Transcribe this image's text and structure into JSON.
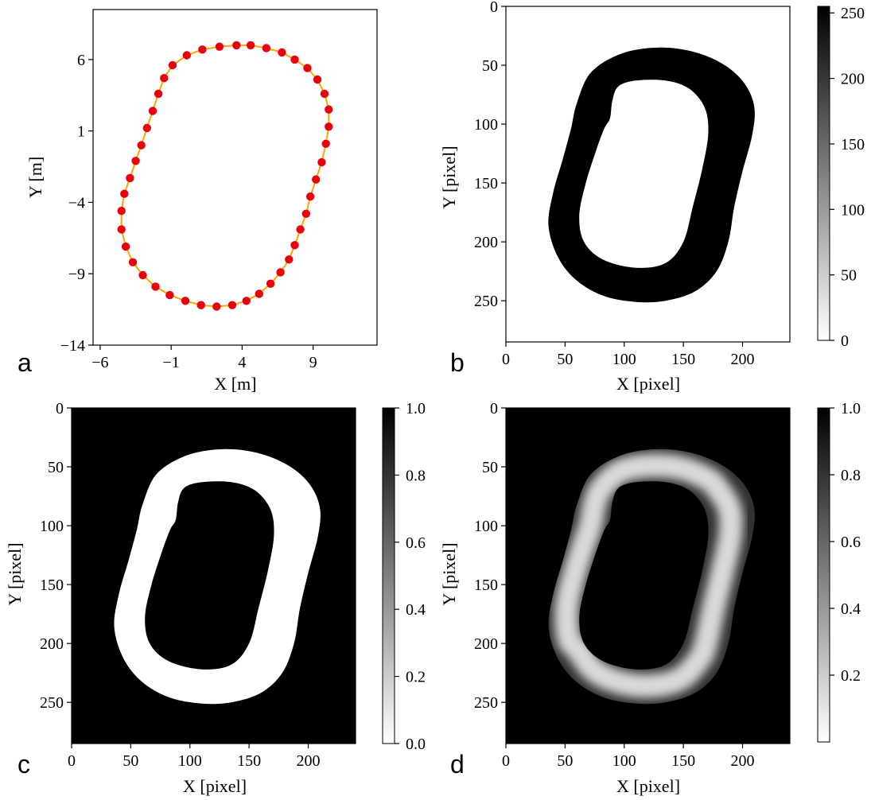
{
  "chart_data": [
    {
      "id": "a",
      "type": "scatter",
      "panel_label": "a",
      "xlabel": "X [m]",
      "ylabel": "Y [m]",
      "xticks": [
        -6,
        -1,
        4,
        9
      ],
      "yticks": [
        6,
        1,
        -4,
        -9,
        -14
      ],
      "xlim": [
        -6.5,
        13.5
      ],
      "ylim": [
        -14,
        9.5
      ],
      "line_color": "#ffa500",
      "point_color": "#e8000b",
      "points": [
        [
          3.6,
          7.0
        ],
        [
          4.6,
          7.0
        ],
        [
          5.7,
          6.8
        ],
        [
          6.8,
          6.5
        ],
        [
          7.7,
          6.0
        ],
        [
          8.6,
          5.4
        ],
        [
          9.3,
          4.6
        ],
        [
          9.8,
          3.6
        ],
        [
          10.1,
          2.5
        ],
        [
          10.1,
          1.3
        ],
        [
          9.9,
          0.1
        ],
        [
          9.6,
          -1.2
        ],
        [
          9.2,
          -2.4
        ],
        [
          8.8,
          -3.6
        ],
        [
          8.5,
          -4.8
        ],
        [
          8.1,
          -5.9
        ],
        [
          7.7,
          -7.0
        ],
        [
          7.3,
          -8.0
        ],
        [
          6.7,
          -8.9
        ],
        [
          6.0,
          -9.7
        ],
        [
          5.2,
          -10.4
        ],
        [
          4.3,
          -10.9
        ],
        [
          3.3,
          -11.2
        ],
        [
          2.2,
          -11.3
        ],
        [
          1.1,
          -11.2
        ],
        [
          0.0,
          -10.9
        ],
        [
          -1.1,
          -10.5
        ],
        [
          -2.1,
          -9.9
        ],
        [
          -3.0,
          -9.1
        ],
        [
          -3.7,
          -8.2
        ],
        [
          -4.2,
          -7.1
        ],
        [
          -4.5,
          -5.9
        ],
        [
          -4.5,
          -4.6
        ],
        [
          -4.3,
          -3.4
        ],
        [
          -3.9,
          -2.3
        ],
        [
          -3.5,
          -1.1
        ],
        [
          -3.1,
          0.0
        ],
        [
          -2.7,
          1.2
        ],
        [
          -2.3,
          2.4
        ],
        [
          -1.9,
          3.6
        ],
        [
          -1.5,
          4.7
        ],
        [
          -0.9,
          5.6
        ],
        [
          0.1,
          6.3
        ],
        [
          1.2,
          6.7
        ],
        [
          2.4,
          6.9
        ]
      ]
    },
    {
      "id": "b",
      "type": "heatmap",
      "panel_label": "b",
      "xlabel": "X [pixel]",
      "ylabel": "Y [pixel]",
      "xticks": [
        0,
        50,
        100,
        150,
        200
      ],
      "yticks": [
        0,
        50,
        100,
        150,
        200,
        250
      ],
      "extent": [
        240,
        285
      ],
      "colormap": "gray_r",
      "background_value": 0,
      "track_value": 255,
      "colorbar": {
        "min": 0,
        "max": 255,
        "ticks": [
          0,
          50,
          100,
          150,
          200,
          250
        ]
      },
      "outer_contour": [
        [
          130,
          35
        ],
        [
          160,
          39
        ],
        [
          185,
          50
        ],
        [
          202,
          66
        ],
        [
          210,
          86
        ],
        [
          208,
          110
        ],
        [
          200,
          140
        ],
        [
          193,
          170
        ],
        [
          188,
          200
        ],
        [
          178,
          225
        ],
        [
          160,
          242
        ],
        [
          135,
          250
        ],
        [
          110,
          251
        ],
        [
          83,
          246
        ],
        [
          60,
          233
        ],
        [
          44,
          213
        ],
        [
          36,
          186
        ],
        [
          40,
          158
        ],
        [
          48,
          130
        ],
        [
          55,
          104
        ],
        [
          60,
          82
        ],
        [
          72,
          56
        ],
        [
          98,
          40
        ]
      ],
      "inner_contour": [
        [
          110,
          63
        ],
        [
          135,
          63
        ],
        [
          155,
          70
        ],
        [
          168,
          86
        ],
        [
          171,
          108
        ],
        [
          166,
          138
        ],
        [
          158,
          170
        ],
        [
          150,
          200
        ],
        [
          135,
          218
        ],
        [
          110,
          222
        ],
        [
          82,
          215
        ],
        [
          66,
          200
        ],
        [
          62,
          178
        ],
        [
          67,
          152
        ],
        [
          75,
          126
        ],
        [
          83,
          104
        ],
        [
          88,
          95
        ],
        [
          90,
          80
        ],
        [
          95,
          68
        ]
      ]
    },
    {
      "id": "c",
      "type": "heatmap",
      "panel_label": "c",
      "xlabel": "X [pixel]",
      "ylabel": "Y [pixel]",
      "xticks": [
        0,
        50,
        100,
        150,
        200
      ],
      "yticks": [
        0,
        50,
        100,
        150,
        200,
        250
      ],
      "extent": [
        240,
        285
      ],
      "colormap": "gray_r",
      "background_value": 1.0,
      "track_value": 0.0,
      "colorbar": {
        "min": 0.0,
        "max": 1.0,
        "ticks": [
          "0.0",
          "0.2",
          "0.4",
          "0.6",
          "0.8",
          "1.0"
        ]
      }
    },
    {
      "id": "d",
      "type": "heatmap",
      "panel_label": "d",
      "xlabel": "X [pixel]",
      "ylabel": "Y [pixel]",
      "xticks": [
        0,
        50,
        100,
        150,
        200
      ],
      "yticks": [
        0,
        50,
        100,
        150,
        200,
        250
      ],
      "extent": [
        240,
        285
      ],
      "colormap": "gray_r",
      "background_value": 1.0,
      "track_center_value": 0.15,
      "track_edge_value": 0.8,
      "colorbar": {
        "min": 0.0,
        "max": 1.0,
        "ticks": [
          "0.2",
          "0.4",
          "0.6",
          "0.8",
          "1.0"
        ]
      }
    }
  ]
}
